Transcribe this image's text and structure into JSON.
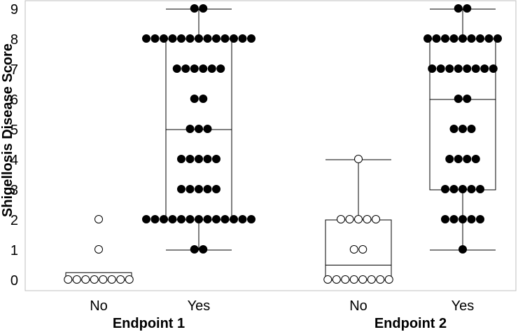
{
  "chart_data": {
    "type": "box",
    "ylabel": "Shigellosis Disease Score",
    "ylim": [
      0,
      9
    ],
    "yticks": [
      "0",
      "1",
      "2",
      "3",
      "4",
      "5",
      "6",
      "7",
      "8",
      "9"
    ],
    "grid": false,
    "groups": [
      {
        "label": "Endpoint 1",
        "categories": [
          {
            "label": "No",
            "filled": false,
            "box": {
              "min": 0,
              "q1": 0,
              "median": 0,
              "q3": 0.25,
              "max": 0.25
            },
            "points": [
              0,
              0,
              0,
              0,
              0,
              0,
              0,
              0,
              1,
              2
            ]
          },
          {
            "label": "Yes",
            "filled": true,
            "box": {
              "min": 1,
              "q1": 2,
              "median": 5,
              "q3": 8,
              "max": 9
            },
            "points": [
              1,
              1,
              2,
              2,
              2,
              2,
              2,
              2,
              2,
              2,
              2,
              2,
              2,
              2,
              2,
              3,
              3,
              3,
              3,
              3,
              4,
              4,
              4,
              4,
              4,
              5,
              5,
              5,
              6,
              6,
              7,
              7,
              7,
              7,
              7,
              7,
              8,
              8,
              8,
              8,
              8,
              8,
              8,
              8,
              8,
              8,
              8,
              8,
              8,
              9,
              9
            ]
          }
        ]
      },
      {
        "label": "Endpoint 2",
        "categories": [
          {
            "label": "No",
            "filled": false,
            "box": {
              "min": 0,
              "q1": 0,
              "median": 0.5,
              "q3": 2,
              "max": 4
            },
            "points": [
              0,
              0,
              0,
              0,
              0,
              0,
              0,
              0,
              1,
              1,
              2,
              2,
              2,
              2,
              2,
              4
            ]
          },
          {
            "label": "Yes",
            "filled": true,
            "box": {
              "min": 1,
              "q1": 3,
              "median": 6,
              "q3": 8,
              "max": 9
            },
            "points": [
              1,
              2,
              2,
              2,
              2,
              2,
              3,
              3,
              3,
              3,
              3,
              4,
              4,
              4,
              4,
              5,
              5,
              5,
              6,
              6,
              7,
              7,
              7,
              7,
              7,
              7,
              7,
              7,
              8,
              8,
              8,
              8,
              8,
              8,
              8,
              8,
              8,
              9,
              9
            ]
          }
        ]
      }
    ]
  }
}
